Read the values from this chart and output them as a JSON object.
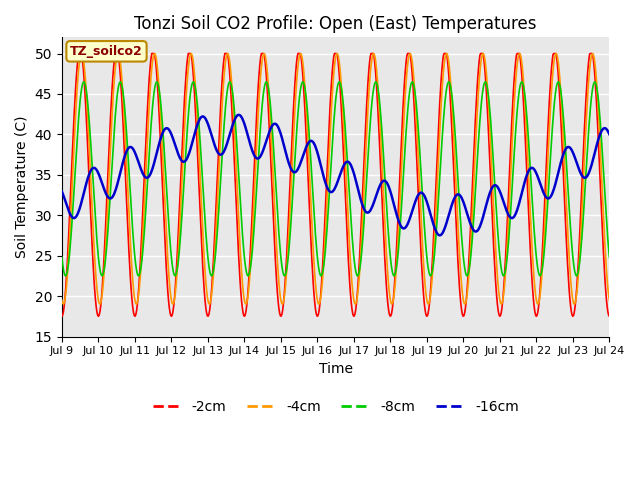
{
  "title": "Tonzi Soil CO2 Profile: Open (East) Temperatures",
  "xlabel": "Time",
  "ylabel": "Soil Temperature (C)",
  "ylim": [
    15,
    52
  ],
  "yticks": [
    15,
    20,
    25,
    30,
    35,
    40,
    45,
    50
  ],
  "legend_label": "TZ_soilco2",
  "series_labels": [
    "-2cm",
    "-4cm",
    "-8cm",
    "-16cm"
  ],
  "series_colors": [
    "#ff0000",
    "#ff9900",
    "#00cc00",
    "#0000cc"
  ],
  "n_days": 15,
  "x_tick_positions": [
    0,
    1,
    2,
    3,
    4,
    5,
    6,
    7,
    8,
    9,
    10,
    11,
    12,
    13,
    14,
    15
  ],
  "x_tick_labels": [
    "Jul 9",
    "Jul 10",
    "Jul 11",
    "Jul 12",
    "Jul 13",
    "Jul 14",
    "Jul 15",
    "Jul 16",
    "Jul 17",
    "Jul 18",
    "Jul 19",
    "Jul 20",
    "Jul 21",
    "Jul 22",
    "Jul 23",
    "Jul 24"
  ]
}
